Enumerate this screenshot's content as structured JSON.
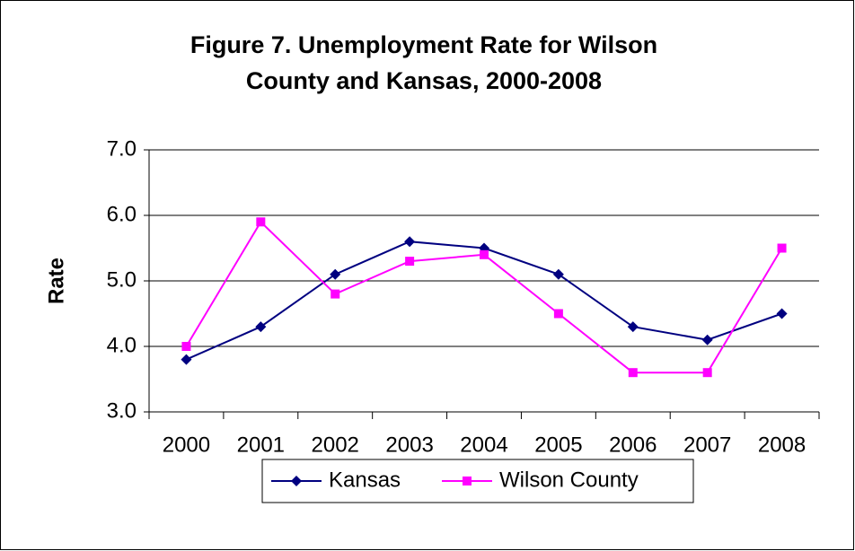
{
  "chart_data": {
    "type": "line",
    "title": "Figure 7. Unemployment Rate for Wilson County and Kansas, 2000-2008",
    "y_label": "Rate",
    "categories": [
      "2000",
      "2001",
      "2002",
      "2003",
      "2004",
      "2005",
      "2006",
      "2007",
      "2008"
    ],
    "series": [
      {
        "name": "Kansas",
        "color": "#000080",
        "marker": "diamond",
        "values": [
          3.8,
          4.3,
          5.1,
          5.6,
          5.5,
          5.1,
          4.3,
          4.1,
          4.5
        ]
      },
      {
        "name": "Wilson County",
        "color": "#ff00ff",
        "marker": "square",
        "values": [
          4.0,
          5.9,
          4.8,
          5.3,
          5.4,
          4.5,
          3.6,
          3.6,
          5.5
        ]
      }
    ],
    "ylim": [
      3,
      7
    ],
    "yticks": [
      {
        "value": 3,
        "label": "3.0"
      },
      {
        "value": 4,
        "label": "4.0"
      },
      {
        "value": 5,
        "label": "5.0"
      },
      {
        "value": 6,
        "label": "6.0"
      },
      {
        "value": 7,
        "label": "7.0"
      }
    ],
    "grid": true,
    "legend": "bottom"
  }
}
